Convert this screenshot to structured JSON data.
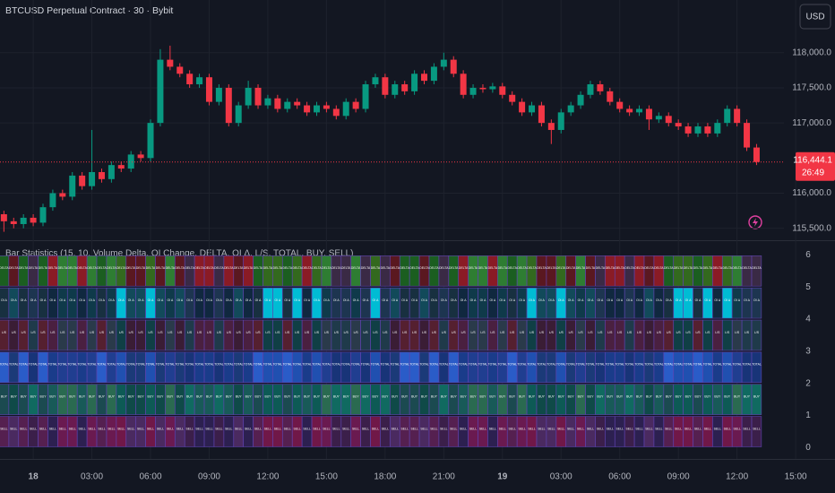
{
  "header": {
    "symbol": "BTCUSD Perpetual Contract · 30 · Bybit",
    "currency": "USD"
  },
  "chart_data": [
    {
      "type": "candlestick",
      "up_color": "#089981",
      "down_color": "#f23645",
      "x": [
        -1.5,
        -1,
        -0.5,
        0,
        0.5,
        1,
        1.5,
        2,
        2.5,
        3,
        3.5,
        4,
        4.5,
        5,
        5.5,
        6,
        6.5,
        7,
        7.5,
        8,
        8.5,
        9,
        9.5,
        10,
        10.5,
        11,
        11.5,
        12,
        12.5,
        13,
        13.5,
        14,
        14.5,
        15,
        15.5,
        16,
        16.5,
        17,
        17.5,
        18,
        18.5,
        19,
        19.5,
        20,
        20.5,
        21,
        21.5,
        22,
        22.5,
        23,
        23.5,
        24,
        24.5,
        25,
        25.5,
        26,
        26.5,
        27,
        27.5,
        28,
        28.5,
        29,
        29.5,
        30,
        30.5,
        31,
        31.5,
        32,
        32.5,
        33,
        33.5,
        34,
        34.5,
        35,
        35.5,
        36,
        36.5,
        37
      ],
      "open": [
        115700,
        115600,
        115560,
        115650,
        115580,
        115800,
        116000,
        115950,
        116250,
        116100,
        116300,
        116200,
        116400,
        116350,
        116550,
        116500,
        117000,
        117900,
        117800,
        117700,
        117550,
        117650,
        117300,
        117500,
        117000,
        117250,
        117500,
        117250,
        117350,
        117200,
        117300,
        117250,
        117150,
        117250,
        117200,
        117100,
        117300,
        117200,
        117550,
        117650,
        117400,
        117550,
        117450,
        117700,
        117600,
        117800,
        117900,
        117700,
        117400,
        117500,
        117480,
        117520,
        117400,
        117300,
        117150,
        117250,
        117000,
        116900,
        117150,
        117250,
        117400,
        117550,
        117450,
        117300,
        117200,
        117150,
        117200,
        117050,
        117100,
        117000,
        116950,
        116850,
        116950,
        116850,
        117000,
        117200,
        117000,
        116650
      ],
      "high": [
        115750,
        115650,
        115700,
        115700,
        115850,
        116050,
        116050,
        116300,
        116300,
        116900,
        116350,
        116450,
        116450,
        116600,
        116600,
        117050,
        118050,
        118100,
        117850,
        117750,
        117700,
        117700,
        117550,
        117550,
        117300,
        117600,
        117550,
        117400,
        117400,
        117350,
        117350,
        117300,
        117300,
        117300,
        117250,
        117350,
        117350,
        117600,
        117700,
        117700,
        117600,
        117600,
        117750,
        117750,
        117850,
        118000,
        117950,
        117750,
        117550,
        117550,
        117570,
        117570,
        117450,
        117350,
        117300,
        117300,
        117050,
        117200,
        117300,
        117450,
        117600,
        117600,
        117500,
        117350,
        117250,
        117250,
        117250,
        117150,
        117150,
        117050,
        117000,
        117000,
        117000,
        117050,
        117250,
        117250,
        117050,
        116700
      ],
      "low": [
        115450,
        115500,
        115500,
        115530,
        115530,
        115750,
        115900,
        115900,
        116050,
        116050,
        116150,
        116150,
        116300,
        116300,
        116450,
        116450,
        116950,
        117750,
        117650,
        117500,
        117500,
        117250,
        117250,
        116950,
        116950,
        117200,
        117200,
        117200,
        117150,
        117150,
        117200,
        117100,
        117100,
        117150,
        117050,
        117050,
        117150,
        117150,
        117500,
        117350,
        117350,
        117400,
        117400,
        117550,
        117550,
        117750,
        117650,
        117350,
        117350,
        117430,
        117430,
        117350,
        117250,
        117100,
        117100,
        116950,
        116700,
        116850,
        117100,
        117200,
        117350,
        117400,
        117250,
        117150,
        117100,
        117100,
        116900,
        117000,
        116950,
        116900,
        116800,
        116800,
        116800,
        116800,
        116950,
        116950,
        116600,
        116400
      ],
      "close": [
        115600,
        115560,
        115650,
        115580,
        115800,
        116000,
        115950,
        116250,
        116100,
        116300,
        116200,
        116400,
        116350,
        116550,
        116500,
        117000,
        117900,
        117800,
        117700,
        117550,
        117650,
        117300,
        117500,
        117000,
        117250,
        117500,
        117250,
        117350,
        117200,
        117300,
        117250,
        117150,
        117250,
        117200,
        117100,
        117300,
        117200,
        117550,
        117650,
        117400,
        117550,
        117450,
        117700,
        117600,
        117800,
        117900,
        117700,
        117400,
        117500,
        117480,
        117520,
        117400,
        117300,
        117150,
        117250,
        117000,
        116900,
        117150,
        117250,
        117400,
        117550,
        117450,
        117300,
        117200,
        117150,
        117200,
        117050,
        117100,
        117000,
        116950,
        116850,
        116950,
        116850,
        117000,
        117200,
        117000,
        116650,
        116444
      ],
      "xlim": [
        -1.7,
        38.4
      ],
      "xticks": [
        {
          "value": 0,
          "label": "18"
        },
        {
          "value": 3,
          "label": "03:00"
        },
        {
          "value": 6,
          "label": "06:00"
        },
        {
          "value": 9,
          "label": "09:00"
        },
        {
          "value": 12,
          "label": "12:00"
        },
        {
          "value": 15,
          "label": "15:00"
        },
        {
          "value": 18,
          "label": "18:00"
        },
        {
          "value": 21,
          "label": "21:00"
        },
        {
          "value": 24,
          "label": "19"
        },
        {
          "value": 27,
          "label": "03:00"
        },
        {
          "value": 30,
          "label": "06:00"
        },
        {
          "value": 33,
          "label": "09:00"
        },
        {
          "value": 36,
          "label": "12:00"
        },
        {
          "value": 39,
          "label": "15:00"
        }
      ],
      "ylim": [
        115330,
        118750
      ],
      "yticks": [
        {
          "value": 115500,
          "label": "115,500.0"
        },
        {
          "value": 116000,
          "label": "116,000.0"
        },
        {
          "value": 117000,
          "label": "117,000.0"
        },
        {
          "value": 117500,
          "label": "117,500.0"
        },
        {
          "value": 118000,
          "label": "118,000.0"
        }
      ],
      "last_price": 116444.1,
      "last_price_label": "116,444.1",
      "countdown": "26:49",
      "grid": true
    },
    {
      "type": "heatmap",
      "title": "Bar Statistics (15, 10, Volume Delta, OI Change, DELTA, OI Δ, L/S, TOTAL, BUY, SELL)",
      "rows": [
        "DELTA",
        "OI Δ",
        "L/S",
        "TOTAL",
        "BUY",
        "SELL"
      ],
      "ylim": [
        -0.35,
        6.4
      ],
      "yticks": [
        0,
        1,
        2,
        3,
        4,
        5,
        6
      ]
    }
  ]
}
